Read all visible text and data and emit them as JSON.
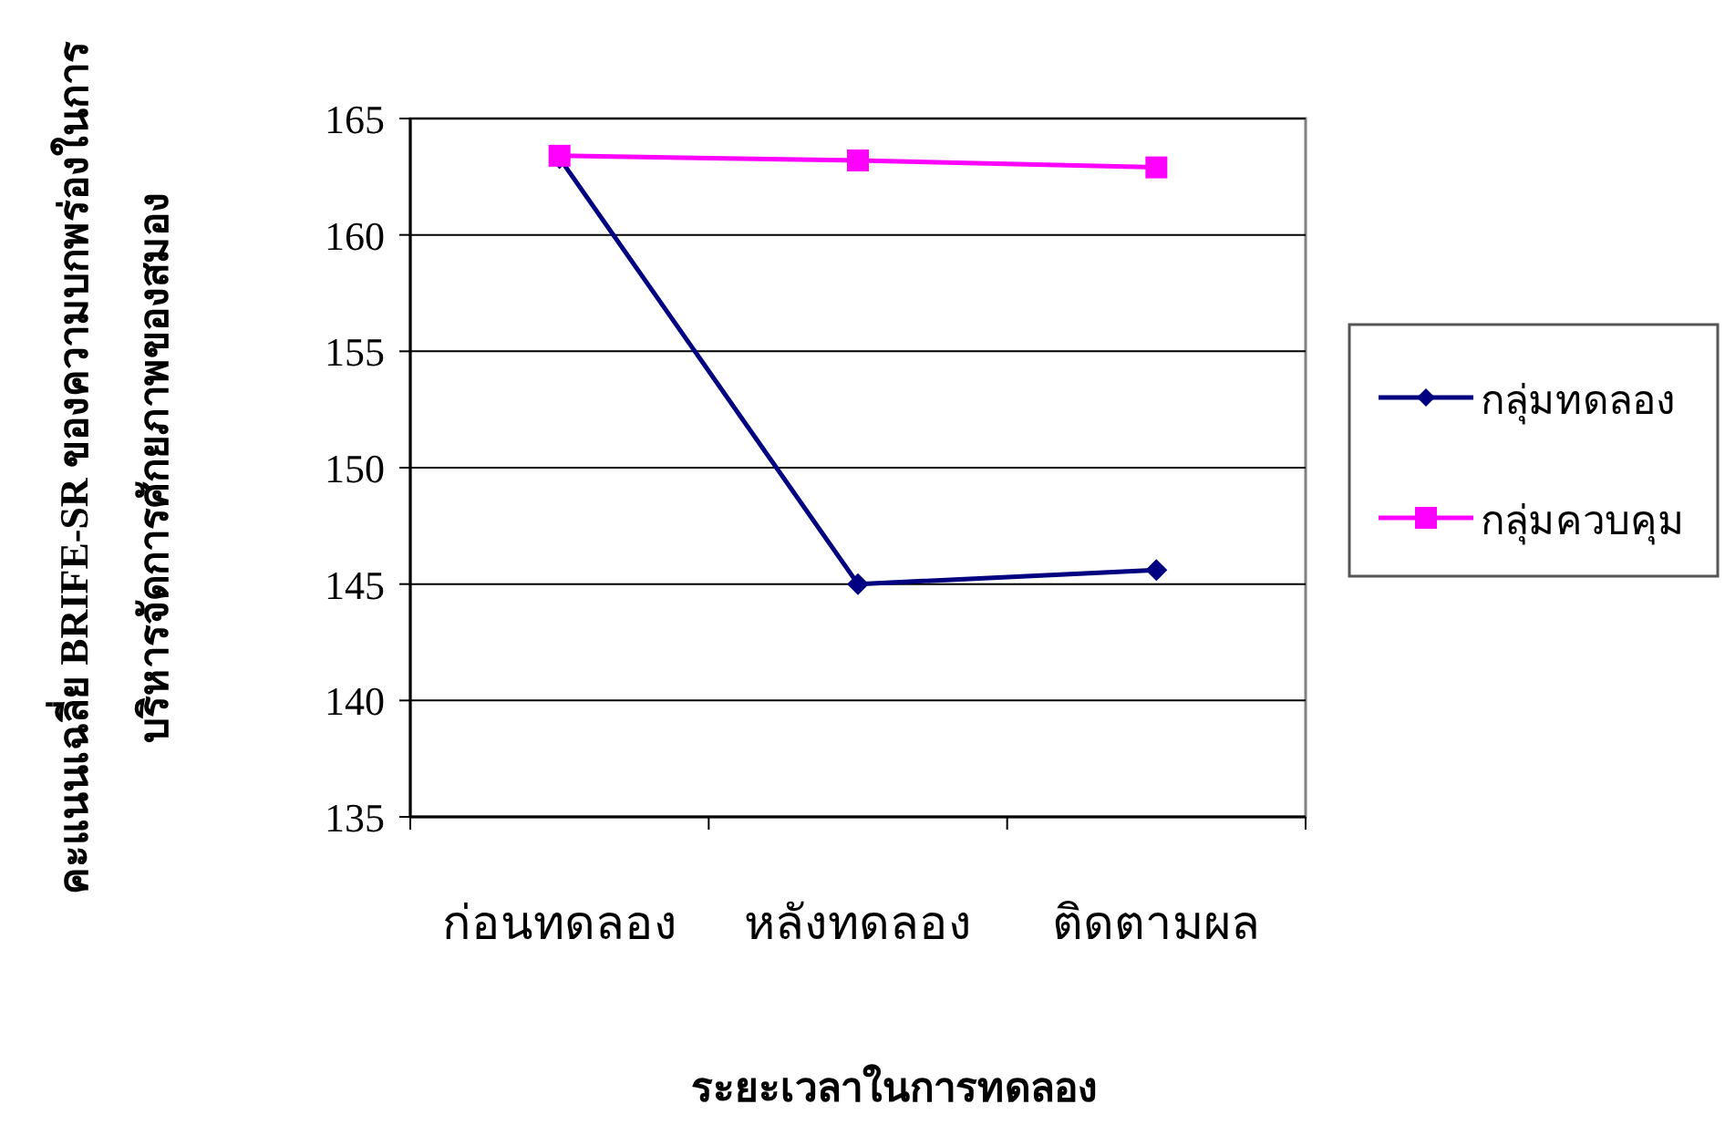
{
  "chart_data": {
    "type": "line",
    "xlabel": "ระยะเวลาในการทดลอง",
    "ylabel": "คะแนนเฉลี่ย BRIFE-SR ของความบกพร่องในการ\nบริหารจัดการศักยภาพของสมอง",
    "categories": [
      "ก่อนทดลอง",
      "หลังทดลอง",
      "ติดตามผล"
    ],
    "series": [
      {
        "name": "กลุ่มทดลอง",
        "color": "#000080",
        "marker": "diamond",
        "values": [
          163.3,
          145.0,
          145.6
        ]
      },
      {
        "name": "กลุ่มควบคุม",
        "color": "#ff00ff",
        "marker": "square",
        "values": [
          163.4,
          163.2,
          162.9
        ]
      }
    ],
    "ylim": [
      135,
      165
    ],
    "yticks": [
      135,
      140,
      145,
      150,
      155,
      160,
      165
    ],
    "grid": "y",
    "legend": "right"
  }
}
